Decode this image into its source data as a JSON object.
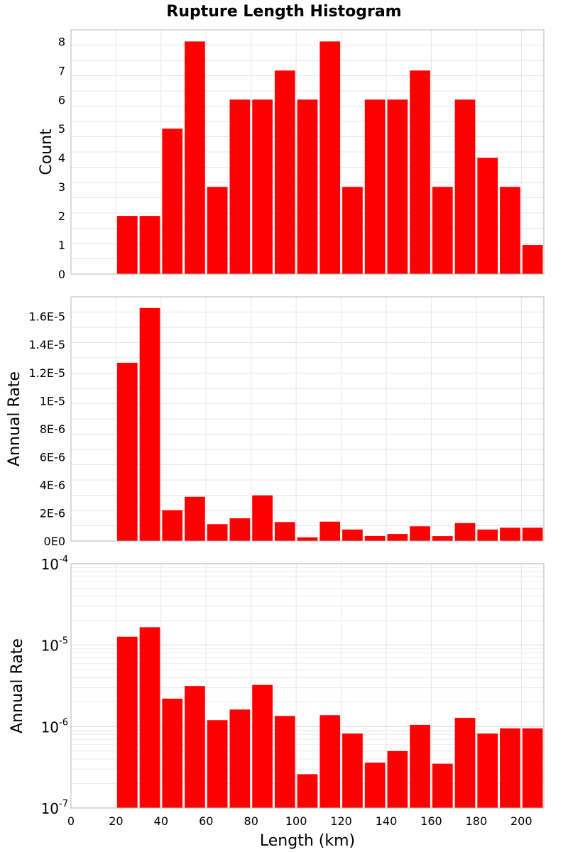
{
  "chart_data": {
    "title": "Rupture Length Histogram",
    "xlabel": "Length (km)",
    "xlim": [
      0,
      210
    ],
    "x_ticks": [
      "0",
      "20",
      "40",
      "60",
      "80",
      "100",
      "120",
      "140",
      "160",
      "180",
      "200"
    ],
    "bin_width": 10,
    "bar_color": "#ff0000",
    "grid": true,
    "bins": [
      20,
      30,
      40,
      50,
      60,
      70,
      80,
      90,
      100,
      110,
      120,
      130,
      140,
      150,
      160,
      170,
      180,
      190,
      200
    ],
    "panels": [
      {
        "type": "bar",
        "ylabel": "Count",
        "yscale": "linear",
        "ylim": [
          0,
          8.4
        ],
        "y_ticks": [
          "0",
          "1",
          "2",
          "3",
          "4",
          "5",
          "6",
          "7",
          "8"
        ],
        "values": [
          2,
          2,
          5,
          8,
          3,
          6,
          6,
          7,
          6,
          8,
          3,
          6,
          6,
          7,
          3,
          6,
          4,
          3,
          1
        ]
      },
      {
        "type": "bar",
        "ylabel": "Annual Rate",
        "yscale": "linear",
        "ylim": [
          0,
          1.74e-05
        ],
        "y_ticks": [
          "0E0",
          "2E-6",
          "4E-6",
          "6E-6",
          "8E-6",
          "1E-5",
          "1.2E-5",
          "1.4E-5",
          "1.6E-5"
        ],
        "values": [
          1.27e-05,
          1.66e-05,
          2.2e-06,
          3.15e-06,
          1.2e-06,
          1.62e-06,
          3.25e-06,
          1.35e-06,
          2.6e-07,
          1.38e-06,
          8.2e-07,
          3.6e-07,
          5e-07,
          1.05e-06,
          3.5e-07,
          1.28e-06,
          8.2e-07,
          9.5e-07,
          9.5e-07
        ]
      },
      {
        "type": "bar",
        "ylabel": "Annual Rate",
        "yscale": "log",
        "ylim": [
          1e-07,
          0.0001
        ],
        "y_ticks": [
          {
            "base": "10",
            "exp": "-7"
          },
          {
            "base": "10",
            "exp": "-6"
          },
          {
            "base": "10",
            "exp": "-5"
          },
          {
            "base": "10",
            "exp": "-4"
          }
        ],
        "values": [
          1.27e-05,
          1.66e-05,
          2.2e-06,
          3.15e-06,
          1.2e-06,
          1.62e-06,
          3.25e-06,
          1.35e-06,
          2.6e-07,
          1.38e-06,
          8.2e-07,
          3.6e-07,
          5e-07,
          1.05e-06,
          3.5e-07,
          1.28e-06,
          8.2e-07,
          9.5e-07,
          9.5e-07
        ]
      }
    ]
  }
}
